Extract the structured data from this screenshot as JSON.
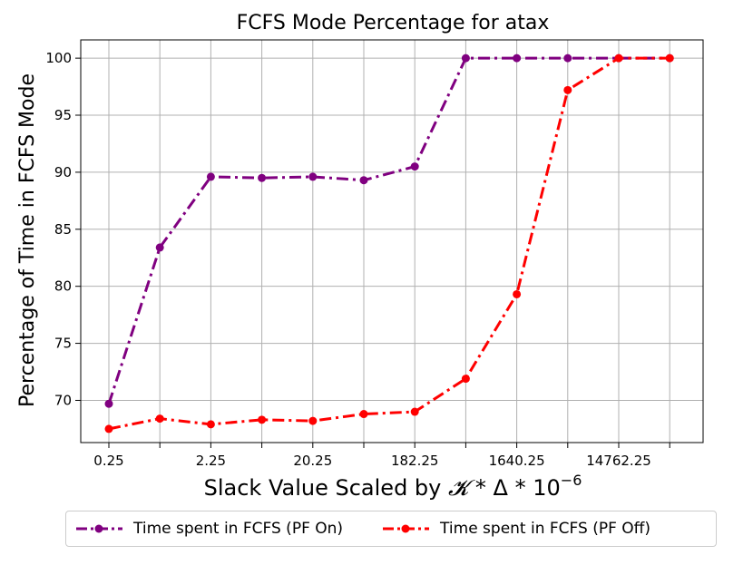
{
  "chart_data": {
    "type": "line",
    "title": "FCFS Mode Percentage for atax",
    "xlabel_prefix": "Slack Value Scaled by ",
    "xlabel_symbol": "𝓚",
    "xlabel_mid": " * Δ * 10",
    "xlabel_exp": "−6",
    "ylabel": "Percentage of Time in FCFS Mode",
    "x_index": [
      0,
      1,
      2,
      3,
      4,
      5,
      6,
      7,
      8,
      9,
      10,
      11
    ],
    "xtick_labels": [
      "0.25",
      "",
      "2.25",
      "",
      "20.25",
      "",
      "182.25",
      "",
      "1640.25",
      "",
      "14762.25",
      ""
    ],
    "yticks": [
      70,
      75,
      80,
      85,
      90,
      95,
      100
    ],
    "ylim": [
      66.3,
      101.6
    ],
    "grid": true,
    "series": [
      {
        "name": "Time spent in FCFS (PF On)",
        "color": "#800080",
        "values": [
          69.7,
          83.4,
          89.6,
          89.5,
          89.6,
          89.3,
          90.5,
          100.0,
          100.0,
          100.0,
          100.0,
          100.0
        ]
      },
      {
        "name": "Time spent in FCFS (PF Off)",
        "color": "#ff0000",
        "values": [
          67.5,
          68.4,
          67.9,
          68.3,
          68.2,
          68.8,
          69.0,
          71.9,
          79.3,
          97.2,
          100.0,
          100.0
        ]
      }
    ],
    "legend_position": "bottom"
  }
}
